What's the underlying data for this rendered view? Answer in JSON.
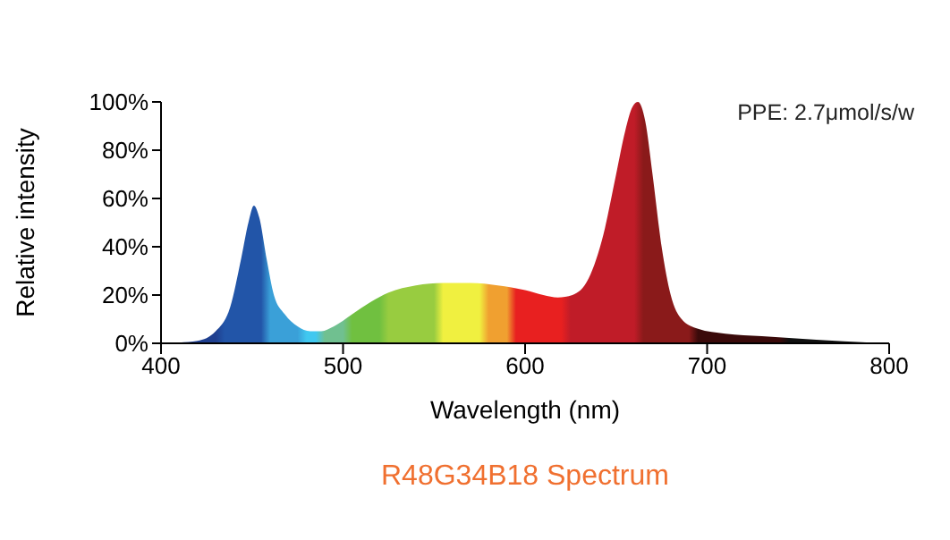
{
  "chart_data": {
    "type": "area",
    "title": "R48G34B18 Spectrum",
    "xlabel": "Wavelength (nm)",
    "ylabel": "Relative intensity",
    "annotations": [
      "PPE:  2.7μmol/s/w"
    ],
    "x": [
      400,
      410,
      420,
      430,
      438,
      444,
      448,
      451,
      454,
      458,
      462,
      468,
      475,
      482,
      488,
      495,
      505,
      515,
      525,
      540,
      555,
      570,
      585,
      600,
      610,
      618,
      626,
      635,
      643,
      650,
      655,
      659,
      662,
      666,
      670,
      675,
      680,
      686,
      695,
      710,
      730,
      760,
      790,
      800
    ],
    "series": [
      {
        "values": [
          0,
          0.3,
          1,
          5,
          15,
          35,
          50,
          57,
          52,
          35,
          20,
          12,
          7,
          5,
          5,
          7,
          12,
          17,
          21,
          24,
          25,
          25,
          24,
          22,
          20,
          19,
          20,
          27,
          45,
          70,
          88,
          98,
          100,
          92,
          70,
          40,
          20,
          10,
          6,
          4,
          3,
          1.5,
          0.3,
          0
        ]
      }
    ],
    "xlim": [
      400,
      800
    ],
    "xticks": [
      400,
      500,
      600,
      700,
      800
    ],
    "ylim": [
      0,
      100
    ],
    "yticks": [
      {
        "value": 0,
        "label": "0%"
      },
      {
        "value": 20,
        "label": "20%"
      },
      {
        "value": 40,
        "label": "40%"
      },
      {
        "value": 60,
        "label": "60%"
      },
      {
        "value": 80,
        "label": "80%"
      },
      {
        "value": 100,
        "label": "100%"
      }
    ],
    "grid": false,
    "legend": false
  }
}
